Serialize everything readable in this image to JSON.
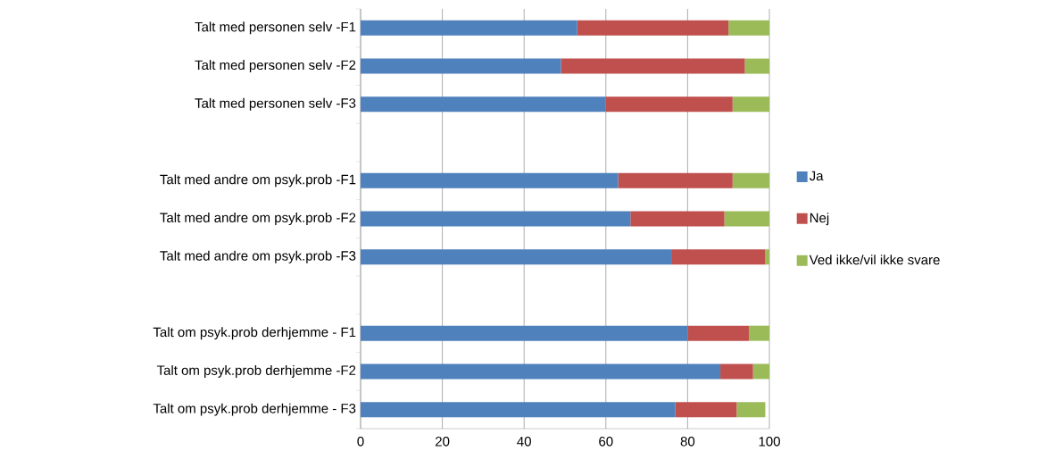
{
  "chart_data": {
    "type": "bar",
    "orientation": "horizontal",
    "stacked": true,
    "categories": [
      "Talt med personen selv -F1",
      "Talt med personen selv -F2",
      "Talt med personen selv -F3",
      null,
      "Talt med andre om psyk.prob -F1",
      "Talt med andre om psyk.prob -F2",
      "Talt med andre om psyk.prob -F3",
      null,
      "Talt om psyk.prob derhjemme - F1",
      "Talt om psyk.prob derhjemme -F2",
      "Talt om psyk.prob derhjemme - F3"
    ],
    "series": [
      {
        "name": "Ja",
        "color": "#4f81bd",
        "values": [
          53,
          49,
          60,
          null,
          63,
          66,
          76,
          null,
          80,
          88,
          77
        ]
      },
      {
        "name": "Nej",
        "color": "#c0504d",
        "values": [
          37,
          45,
          31,
          null,
          28,
          23,
          23,
          null,
          15,
          8,
          15
        ]
      },
      {
        "name": "Ved ikke/vil ikke svare",
        "color": "#9bbb59",
        "values": [
          10,
          6,
          9,
          null,
          9,
          11,
          1,
          null,
          5,
          4,
          7
        ]
      }
    ],
    "xlim": [
      0,
      100
    ],
    "xticks": [
      0,
      20,
      40,
      60,
      80,
      100
    ],
    "grid": "x",
    "legend": "right"
  }
}
